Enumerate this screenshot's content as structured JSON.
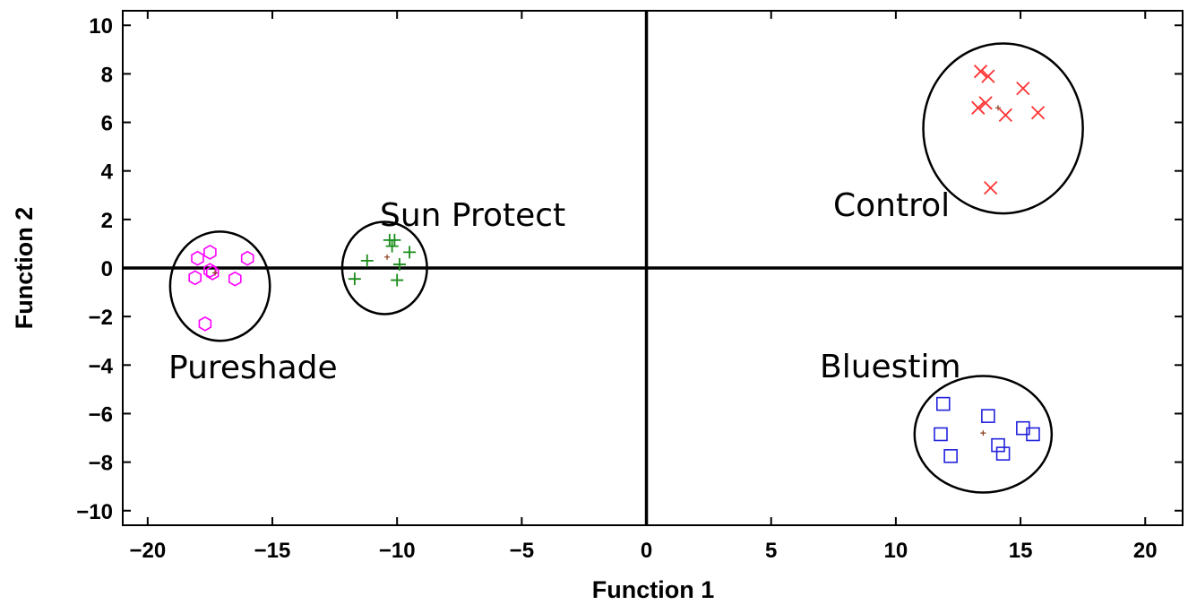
{
  "chart_data": {
    "type": "scatter",
    "title": "",
    "xlabel": "Function 1",
    "ylabel": "Function 2",
    "xlim": [
      -21,
      21.5
    ],
    "ylim": [
      -10.6,
      10.6
    ],
    "xticks": [
      -20,
      -15,
      -10,
      -5,
      0,
      5,
      10,
      15,
      20
    ],
    "yticks": [
      10,
      8,
      6,
      4,
      2,
      0,
      -2,
      -4,
      -6,
      -8,
      -10
    ],
    "grid": false,
    "zero_lines": true,
    "series": [
      {
        "name": "Pureshade",
        "marker": "hexagon",
        "color": "#ff00ff",
        "points": [
          [
            -17.5,
            0.65
          ],
          [
            -18,
            0.4
          ],
          [
            -16,
            0.4
          ],
          [
            -17.5,
            -0.1
          ],
          [
            -17.4,
            -0.2
          ],
          [
            -18.1,
            -0.4
          ],
          [
            -16.5,
            -0.45
          ],
          [
            -17.7,
            -2.3
          ]
        ],
        "centroid": [
          -17.3,
          -0.2
        ],
        "ellipse": {
          "cx": -17.1,
          "cy": -0.75,
          "rx": 2.0,
          "ry": 2.25
        }
      },
      {
        "name": "Sun Protect",
        "marker": "plus",
        "color": "#1a8c1a",
        "points": [
          [
            -10.3,
            1.15
          ],
          [
            -10.1,
            1.15
          ],
          [
            -10.2,
            0.9
          ],
          [
            -9.5,
            0.65
          ],
          [
            -11.2,
            0.3
          ],
          [
            -9.9,
            0.15
          ],
          [
            -11.7,
            -0.45
          ],
          [
            -10,
            -0.5
          ]
        ],
        "centroid": [
          -10.4,
          0.45
        ],
        "ellipse": {
          "cx": -10.5,
          "cy": 0.0,
          "rx": 1.7,
          "ry": 1.9
        }
      },
      {
        "name": "Control",
        "marker": "x",
        "color": "#ff3333",
        "points": [
          [
            13.4,
            8.1
          ],
          [
            13.7,
            7.9
          ],
          [
            15.1,
            7.4
          ],
          [
            13.6,
            6.8
          ],
          [
            13.3,
            6.6
          ],
          [
            14.4,
            6.3
          ],
          [
            15.7,
            6.4
          ],
          [
            13.8,
            3.3
          ]
        ],
        "centroid": [
          14.1,
          6.6
        ],
        "ellipse": {
          "cx": 14.3,
          "cy": 5.75,
          "rx": 3.2,
          "ry": 3.5
        }
      },
      {
        "name": "Bluestim",
        "marker": "square",
        "color": "#2222dd",
        "points": [
          [
            11.9,
            -5.6
          ],
          [
            13.7,
            -6.1
          ],
          [
            15.1,
            -6.6
          ],
          [
            11.8,
            -6.85
          ],
          [
            15.5,
            -6.85
          ],
          [
            14.1,
            -7.3
          ],
          [
            12.2,
            -7.75
          ],
          [
            14.3,
            -7.65
          ]
        ],
        "centroid": [
          13.5,
          -6.8
        ],
        "ellipse": {
          "cx": 13.5,
          "cy": -6.85,
          "rx": 2.75,
          "ry": 2.4
        }
      }
    ]
  },
  "labels": {
    "pureshade": "Pureshade",
    "sun_protect": "Sun Protect",
    "control": "Control",
    "bluestim": "Bluestim"
  }
}
